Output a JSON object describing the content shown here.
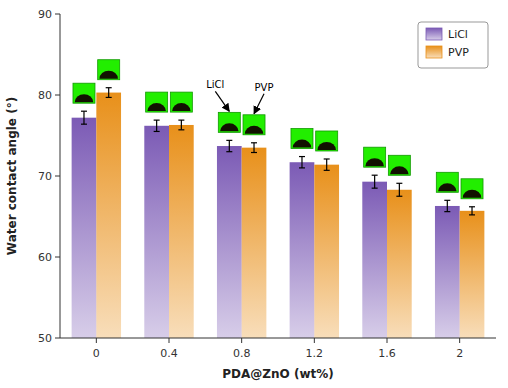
{
  "chart_data": {
    "type": "bar",
    "categories": [
      "0",
      "0.4",
      "0.8",
      "1.2",
      "1.6",
      "2"
    ],
    "series": [
      {
        "name": "LiCl",
        "color": "#7b5ab5",
        "values": [
          77.2,
          76.2,
          73.7,
          71.7,
          69.3,
          66.3
        ],
        "errors": [
          0.8,
          0.7,
          0.7,
          0.7,
          0.8,
          0.7
        ]
      },
      {
        "name": "PVP",
        "color": "#e8901a",
        "values": [
          80.3,
          76.3,
          73.5,
          71.4,
          68.3,
          65.7
        ],
        "errors": [
          0.6,
          0.6,
          0.6,
          0.7,
          0.8,
          0.5
        ]
      }
    ],
    "xlabel": "PDA@ZnO (wt%)",
    "ylabel": "Water contact angle (°)",
    "ylim": [
      50,
      90
    ],
    "yticks": [
      50,
      60,
      70,
      80,
      90
    ],
    "grid": false,
    "legend": "upper right",
    "annotations": [
      {
        "text": "LiCl",
        "category": "0.8",
        "series": "LiCl"
      },
      {
        "text": "PVP",
        "category": "0.8",
        "series": "PVP"
      }
    ]
  }
}
